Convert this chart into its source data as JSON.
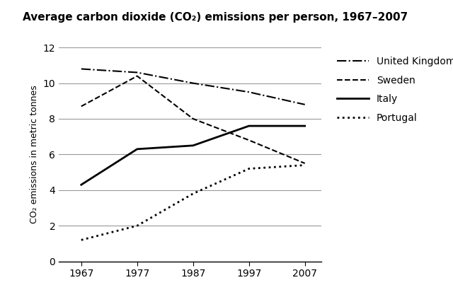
{
  "title": "Average carbon dioxide (CO₂) emissions per person, 1967–2007",
  "ylabel": "CO₂ emissions in metric tonnes",
  "years": [
    1967,
    1977,
    1987,
    1997,
    2007
  ],
  "series": {
    "United Kingdom": {
      "values": [
        10.8,
        10.6,
        10.0,
        9.5,
        8.8
      ],
      "linestyle": "dashdot",
      "linewidth": 1.5,
      "color": "#000000"
    },
    "Sweden": {
      "values": [
        8.7,
        10.4,
        8.0,
        6.8,
        5.5
      ],
      "linestyle": "dashed",
      "linewidth": 1.5,
      "color": "#000000"
    },
    "Italy": {
      "values": [
        4.3,
        6.3,
        6.5,
        7.6,
        7.6
      ],
      "linestyle": "solid",
      "linewidth": 2.0,
      "color": "#000000"
    },
    "Portugal": {
      "values": [
        1.2,
        2.0,
        3.8,
        5.2,
        5.4
      ],
      "linestyle": "dotted",
      "linewidth": 2.0,
      "color": "#000000"
    }
  },
  "xlim": [
    1963,
    2010
  ],
  "ylim": [
    0,
    12
  ],
  "yticks": [
    0,
    2,
    4,
    6,
    8,
    10,
    12
  ],
  "xticks": [
    1967,
    1977,
    1987,
    1997,
    2007
  ],
  "background_color": "#ffffff",
  "grid_color": "#999999",
  "title_fontsize": 11,
  "label_fontsize": 9,
  "tick_fontsize": 10,
  "legend_fontsize": 10
}
